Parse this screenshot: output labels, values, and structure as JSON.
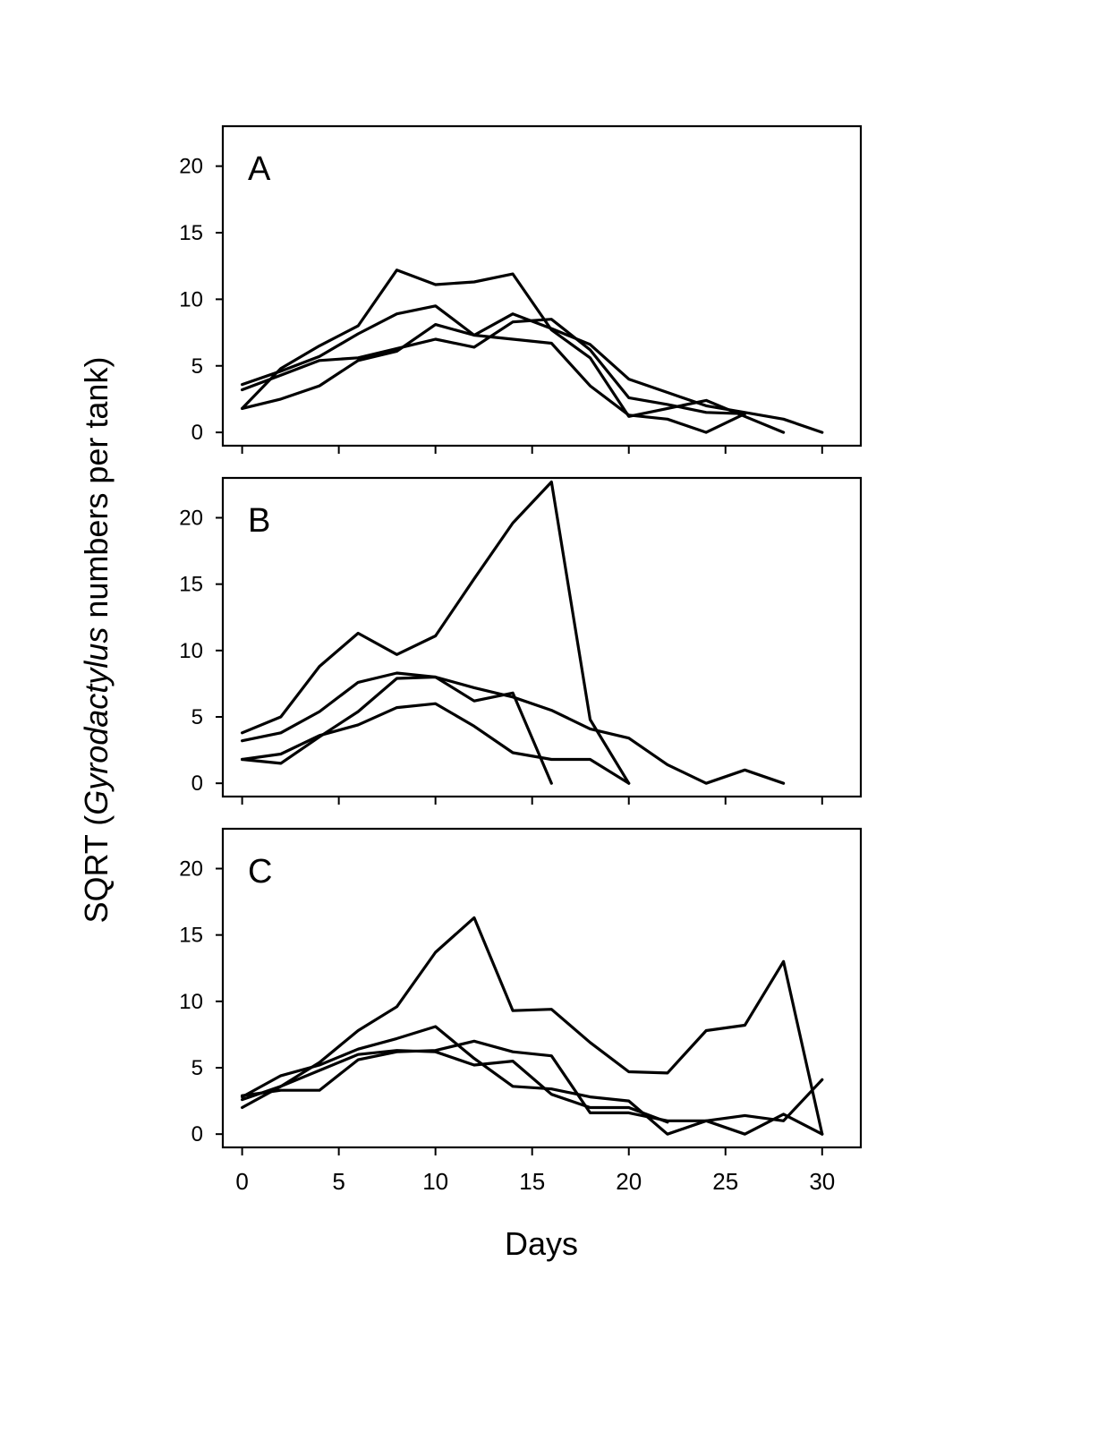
{
  "figure": {
    "ylabel_prefix": "SQRT (",
    "ylabel_italic": "Gyrodactylus",
    "ylabel_suffix": " numbers per tank)",
    "xlabel": "Days"
  },
  "chart_data": [
    {
      "type": "line",
      "panel_label": "A",
      "xlim": [
        -1,
        32
      ],
      "ylim": [
        -1,
        23
      ],
      "x_ticks": [
        0,
        5,
        10,
        15,
        20,
        25,
        30
      ],
      "y_ticks": [
        0,
        5,
        10,
        15,
        20
      ],
      "x_tick_labels_shown": false,
      "grid": false,
      "series": [
        {
          "x": [
            0,
            2,
            4,
            6,
            8,
            10,
            12,
            14,
            16,
            18,
            20,
            22,
            24,
            26,
            28
          ],
          "y": [
            1.8,
            4.8,
            6.5,
            8.0,
            12.2,
            11.1,
            11.3,
            11.9,
            7.7,
            5.6,
            1.2,
            1.8,
            2.4,
            1.2,
            0
          ]
        },
        {
          "x": [
            0,
            2,
            4,
            6,
            8,
            10,
            12,
            14,
            16,
            18,
            20,
            22,
            24,
            26,
            28,
            30
          ],
          "y": [
            3.6,
            4.6,
            5.7,
            7.4,
            8.9,
            9.5,
            7.3,
            8.9,
            7.8,
            6.6,
            4.0,
            3.0,
            2.0,
            1.5,
            1.0,
            0
          ]
        },
        {
          "x": [
            0,
            2,
            4,
            6,
            8,
            10,
            12,
            14,
            16,
            18,
            20,
            22,
            24,
            26
          ],
          "y": [
            3.2,
            4.3,
            5.4,
            5.6,
            6.3,
            7.0,
            6.4,
            8.3,
            8.5,
            6.2,
            2.6,
            2.1,
            1.5,
            1.4
          ]
        },
        {
          "x": [
            0,
            2,
            4,
            6,
            8,
            10,
            12,
            14,
            16,
            18,
            20,
            22,
            24,
            26
          ],
          "y": [
            1.8,
            2.5,
            3.5,
            5.4,
            6.1,
            8.1,
            7.3,
            7.0,
            6.7,
            3.5,
            1.3,
            1.0,
            0,
            1.4
          ]
        }
      ]
    },
    {
      "type": "line",
      "panel_label": "B",
      "xlim": [
        -1,
        32
      ],
      "ylim": [
        -1,
        23
      ],
      "x_ticks": [
        0,
        5,
        10,
        15,
        20,
        25,
        30
      ],
      "y_ticks": [
        0,
        5,
        10,
        15,
        20
      ],
      "x_tick_labels_shown": false,
      "grid": false,
      "series": [
        {
          "x": [
            0,
            2,
            4,
            6,
            8,
            10,
            12,
            14,
            16,
            18,
            20
          ],
          "y": [
            3.8,
            5.0,
            8.8,
            11.3,
            9.7,
            11.1,
            15.4,
            19.6,
            22.7,
            4.8,
            0
          ]
        },
        {
          "x": [
            0,
            2,
            4,
            6,
            8,
            10,
            12,
            14,
            16,
            18,
            20,
            22,
            24,
            26,
            28
          ],
          "y": [
            3.2,
            3.8,
            5.4,
            7.6,
            8.3,
            8.0,
            7.2,
            6.5,
            5.5,
            4.1,
            3.4,
            1.4,
            0,
            1.0,
            0
          ]
        },
        {
          "x": [
            0,
            2,
            4,
            6,
            8,
            10,
            12,
            14,
            16
          ],
          "y": [
            1.8,
            1.5,
            3.5,
            5.4,
            7.9,
            8.0,
            6.2,
            6.8,
            0
          ]
        },
        {
          "x": [
            0,
            2,
            4,
            6,
            8,
            10,
            12,
            14,
            16,
            18,
            20
          ],
          "y": [
            1.8,
            2.2,
            3.6,
            4.4,
            5.7,
            6.0,
            4.3,
            2.3,
            1.8,
            1.8,
            0
          ]
        }
      ]
    },
    {
      "type": "line",
      "panel_label": "C",
      "xlim": [
        -1,
        32
      ],
      "ylim": [
        -1,
        23
      ],
      "x_ticks": [
        0,
        5,
        10,
        15,
        20,
        25,
        30
      ],
      "y_ticks": [
        0,
        5,
        10,
        15,
        20
      ],
      "x_tick_labels_shown": true,
      "grid": false,
      "series": [
        {
          "x": [
            0,
            2,
            4,
            6,
            8,
            10,
            12,
            14,
            16,
            18,
            20,
            22,
            24,
            26,
            28,
            30
          ],
          "y": [
            2.0,
            3.6,
            5.4,
            7.8,
            9.6,
            13.7,
            16.3,
            9.3,
            9.4,
            6.9,
            4.7,
            4.6,
            7.8,
            8.2,
            13.0,
            0
          ]
        },
        {
          "x": [
            0,
            2,
            4,
            6,
            8,
            10,
            12,
            14,
            16,
            18,
            20,
            22,
            24,
            26,
            28,
            30
          ],
          "y": [
            2.8,
            4.4,
            5.2,
            6.4,
            7.2,
            8.1,
            5.7,
            3.6,
            3.4,
            2.8,
            2.5,
            0,
            1.0,
            0,
            1.5,
            0
          ]
        },
        {
          "x": [
            0,
            2,
            4,
            6,
            8,
            10,
            12,
            14,
            16,
            18,
            20,
            22,
            24,
            26,
            28,
            30
          ],
          "y": [
            2.9,
            3.3,
            3.3,
            5.6,
            6.2,
            6.3,
            7.0,
            6.2,
            5.9,
            1.6,
            1.6,
            1.0,
            1.0,
            1.4,
            1.0,
            4.1
          ]
        },
        {
          "x": [
            0,
            2,
            4,
            6,
            8,
            10,
            12,
            14,
            16,
            18,
            20,
            22
          ],
          "y": [
            2.6,
            3.6,
            4.8,
            6.0,
            6.3,
            6.2,
            5.2,
            5.5,
            3.0,
            2.0,
            2.0,
            0.9
          ]
        }
      ]
    }
  ]
}
